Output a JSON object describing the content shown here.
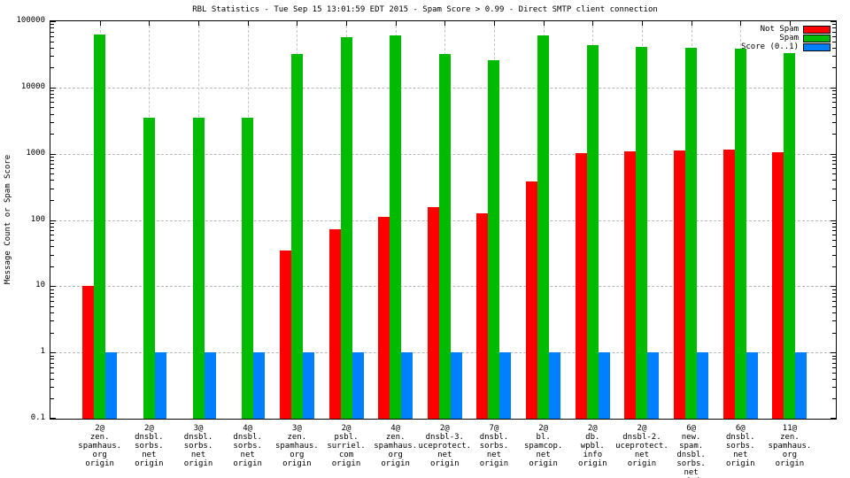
{
  "chart_data": {
    "type": "bar",
    "title": "RBL Statistics - Tue Sep 15 13:01:59 EDT 2015 - Spam Score > 0.99 - Direct SMTP client connection",
    "ylabel": "Message Count or Spam Score",
    "xlabel": "",
    "yscale": "log",
    "ylim": [
      0.1,
      100000
    ],
    "grid": true,
    "legend_position": "top-right",
    "ytick_labels": [
      "100000",
      "10000",
      "1000",
      "100",
      "10",
      "1",
      "0.1"
    ],
    "ytick_values": [
      100000,
      10000,
      1000,
      100,
      10,
      1,
      0.1
    ],
    "categories": [
      [
        "2@",
        "zen.",
        "spamhaus.",
        "org",
        "origin"
      ],
      [
        "2@",
        "dnsbl.",
        "sorbs.",
        "net",
        "origin"
      ],
      [
        "3@",
        "dnsbl.",
        "sorbs.",
        "net",
        "origin"
      ],
      [
        "4@",
        "dnsbl.",
        "sorbs.",
        "net",
        "origin"
      ],
      [
        "3@",
        "zen.",
        "spamhaus.",
        "org",
        "origin"
      ],
      [
        "2@",
        "psbl.",
        "surriel.",
        "com",
        "origin"
      ],
      [
        "4@",
        "zen.",
        "spamhaus.",
        "org",
        "origin"
      ],
      [
        "2@",
        "dnsbl-3.",
        "uceprotect.",
        "net",
        "origin"
      ],
      [
        "7@",
        "dnsbl.",
        "sorbs.",
        "net",
        "origin"
      ],
      [
        "2@",
        "bl.",
        "spamcop.",
        "net",
        "origin"
      ],
      [
        "2@",
        "db.",
        "wpbl.",
        "info",
        "origin"
      ],
      [
        "2@",
        "dnsbl-2.",
        "uceprotect.",
        "net",
        "origin"
      ],
      [
        "6@",
        "new.",
        "spam.",
        "dnsbl.",
        "sorbs.",
        "net",
        "origin"
      ],
      [
        "6@",
        "dnsbl.",
        "sorbs.",
        "net",
        "origin"
      ],
      [
        "11@",
        "zen.",
        "spamhaus.",
        "org",
        "origin"
      ]
    ],
    "series": [
      {
        "name": "Not Spam",
        "color": "#ff0000",
        "values": [
          10,
          null,
          null,
          null,
          35,
          72,
          110,
          155,
          125,
          380,
          1030,
          1080,
          1130,
          1140,
          1040
        ]
      },
      {
        "name": "Spam",
        "color": "#00bb00",
        "values": [
          63000,
          3500,
          3500,
          3500,
          32000,
          57000,
          61000,
          32000,
          26000,
          61000,
          43000,
          41000,
          40000,
          38000,
          33500
        ]
      },
      {
        "name": "Score (0..1)",
        "color": "#0080ff",
        "values": [
          1,
          1,
          1,
          1,
          1,
          1,
          1,
          1,
          1,
          1,
          1,
          1,
          1,
          1,
          1
        ]
      }
    ]
  }
}
